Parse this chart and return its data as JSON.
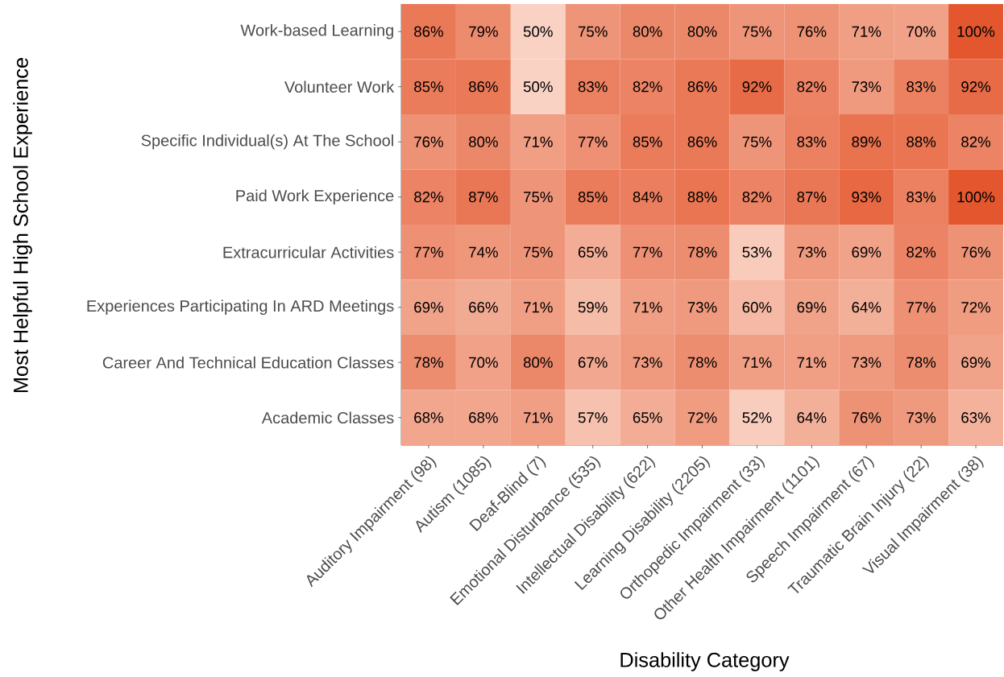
{
  "chart_data": {
    "type": "heatmap",
    "xlabel": "Disability Category",
    "ylabel": "Most Helpful High School Experience",
    "categories": [
      "Auditory Impairment (98)",
      "Autism (1085)",
      "Deaf-Blind (7)",
      "Emotional Disturbance (535)",
      "Intellectual Disability (622)",
      "Learning Disability (2205)",
      "Orthopedic Impairment (33)",
      "Other Health Impairment (1101)",
      "Speech Impairment (67)",
      "Traumatic Brain Injury (22)",
      "Visual Impairment (38)"
    ],
    "y_categories": [
      "Work-based Learning",
      "Volunteer Work",
      "Specific Individual(s) At The School",
      "Paid Work Experience",
      "Extracurricular Activities",
      "Experiences Participating In ARD Meetings",
      "Career And Technical Education Classes",
      "Academic Classes"
    ],
    "cells": [
      [
        86,
        79,
        50,
        75,
        80,
        80,
        75,
        76,
        71,
        70,
        100
      ],
      [
        85,
        86,
        50,
        83,
        82,
        86,
        92,
        82,
        73,
        83,
        92
      ],
      [
        76,
        80,
        71,
        77,
        85,
        86,
        75,
        83,
        89,
        88,
        82
      ],
      [
        82,
        87,
        75,
        85,
        84,
        88,
        82,
        87,
        93,
        83,
        100
      ],
      [
        77,
        74,
        75,
        65,
        77,
        78,
        53,
        73,
        69,
        82,
        76
      ],
      [
        69,
        66,
        71,
        59,
        71,
        73,
        60,
        69,
        64,
        77,
        72
      ],
      [
        78,
        70,
        80,
        67,
        73,
        78,
        71,
        71,
        73,
        78,
        69
      ],
      [
        68,
        68,
        71,
        57,
        65,
        72,
        52,
        64,
        76,
        73,
        63
      ]
    ],
    "cell_labels": [
      [
        "86%",
        "79%",
        "50%",
        "75%",
        "80%",
        "80%",
        "75%",
        "76%",
        "71%",
        "70%",
        "100%"
      ],
      [
        "85%",
        "86%",
        "50%",
        "83%",
        "82%",
        "86%",
        "92%",
        "82%",
        "73%",
        "83%",
        "92%"
      ],
      [
        "76%",
        "80%",
        "71%",
        "77%",
        "85%",
        "86%",
        "75%",
        "83%",
        "89%",
        "88%",
        "82%"
      ],
      [
        "82%",
        "87%",
        "75%",
        "85%",
        "84%",
        "88%",
        "82%",
        "87%",
        "93%",
        "83%",
        "100%"
      ],
      [
        "77%",
        "74%",
        "75%",
        "65%",
        "77%",
        "78%",
        "53%",
        "73%",
        "69%",
        "82%",
        "76%"
      ],
      [
        "69%",
        "66%",
        "71%",
        "59%",
        "71%",
        "73%",
        "60%",
        "69%",
        "64%",
        "77%",
        "72%"
      ],
      [
        "78%",
        "70%",
        "80%",
        "67%",
        "73%",
        "78%",
        "71%",
        "71%",
        "73%",
        "78%",
        "69%"
      ],
      [
        "68%",
        "68%",
        "71%",
        "57%",
        "65%",
        "72%",
        "52%",
        "64%",
        "76%",
        "73%",
        "63%"
      ]
    ]
  }
}
